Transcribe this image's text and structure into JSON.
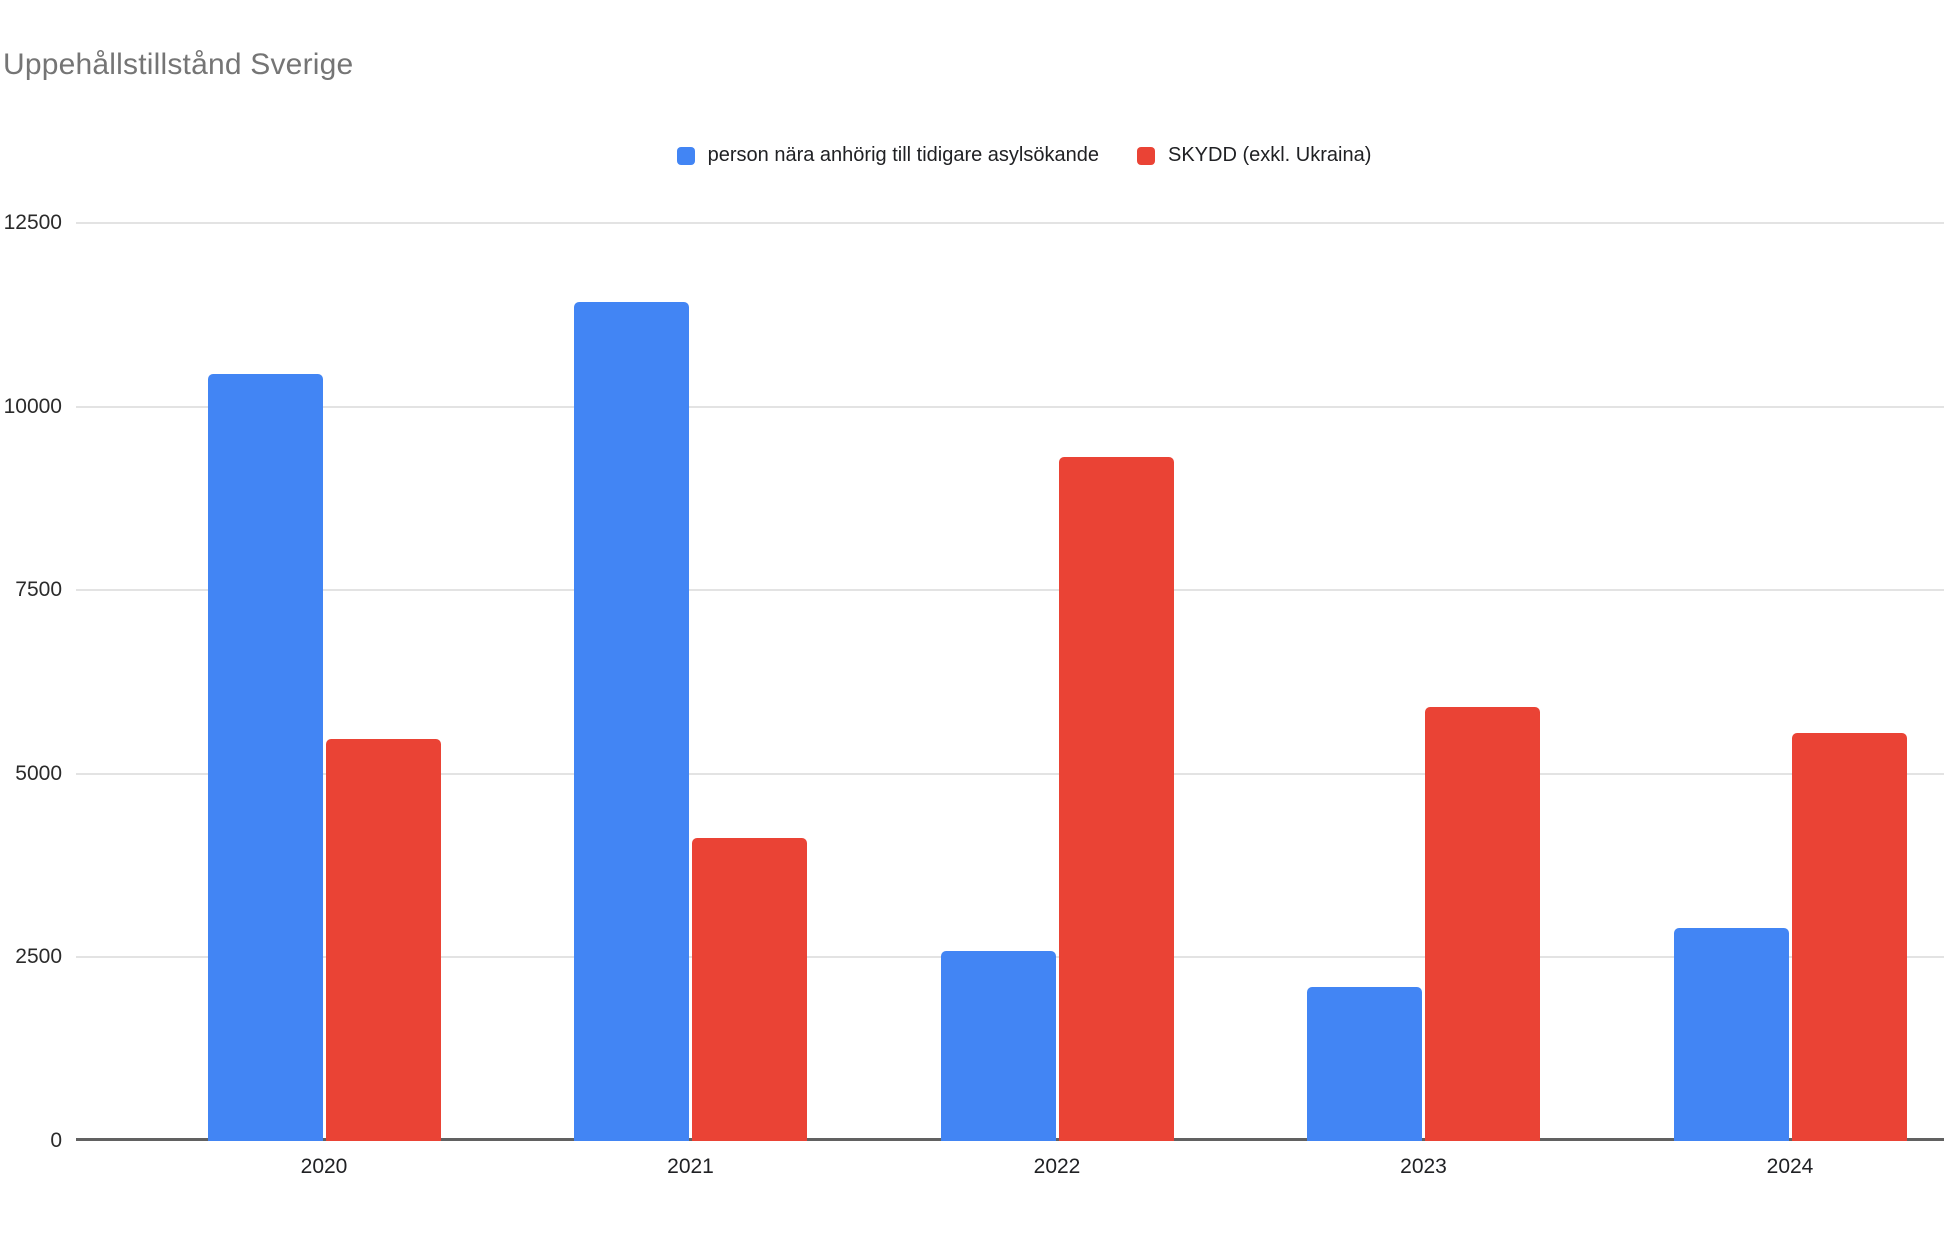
{
  "title": "Uppehållstillstånd Sverige",
  "colors": {
    "series_blue": "#4285F4",
    "series_red": "#EA4335",
    "title_text": "#757575",
    "gridline": "#e3e3e3",
    "axis_line": "#616161"
  },
  "chart_data": {
    "type": "bar",
    "title": "Uppehållstillstånd Sverige",
    "categories": [
      "2020",
      "2021",
      "2022",
      "2023",
      "2024"
    ],
    "series": [
      {
        "name": "person nära anhörig till tidigare asylsökande",
        "color": "#4285F4",
        "values": [
          10450,
          11420,
          2590,
          2100,
          2900
        ]
      },
      {
        "name": "SKYDD (exkl. Ukraina)",
        "color": "#EA4335",
        "values": [
          5480,
          4130,
          9310,
          5910,
          5560
        ]
      }
    ],
    "xlabel": "",
    "ylabel": "",
    "ylim": [
      0,
      12500
    ],
    "yticks": [
      0,
      2500,
      5000,
      7500,
      10000,
      12500
    ],
    "grid": true,
    "legend_position": "top"
  }
}
